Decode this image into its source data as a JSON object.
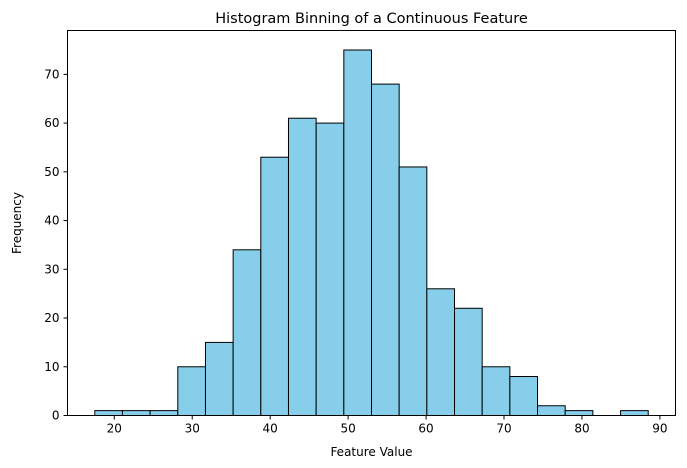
{
  "chart_data": {
    "type": "bar",
    "title": "Histogram Binning of a Continuous Feature",
    "xlabel": "Feature Value",
    "ylabel": "Frequency",
    "bin_edges": [
      17.5,
      21.05,
      24.6,
      28.15,
      31.7,
      35.25,
      38.8,
      42.35,
      45.9,
      49.45,
      53.0,
      56.55,
      60.1,
      63.65,
      67.2,
      70.75,
      74.3,
      77.85,
      81.4,
      84.95,
      88.5
    ],
    "values": [
      1,
      1,
      1,
      10,
      15,
      34,
      53,
      61,
      60,
      75,
      68,
      51,
      26,
      22,
      10,
      8,
      2,
      1,
      0,
      1
    ],
    "xlim": [
      14.0,
      92.0
    ],
    "ylim": [
      0,
      79
    ],
    "xticks": [
      20,
      30,
      40,
      50,
      60,
      70,
      80,
      90
    ],
    "yticks": [
      0,
      10,
      20,
      30,
      40,
      50,
      60,
      70
    ],
    "bar_color": "#87ceeb",
    "edge_color": "#000000",
    "grid": false,
    "legend": "none"
  }
}
